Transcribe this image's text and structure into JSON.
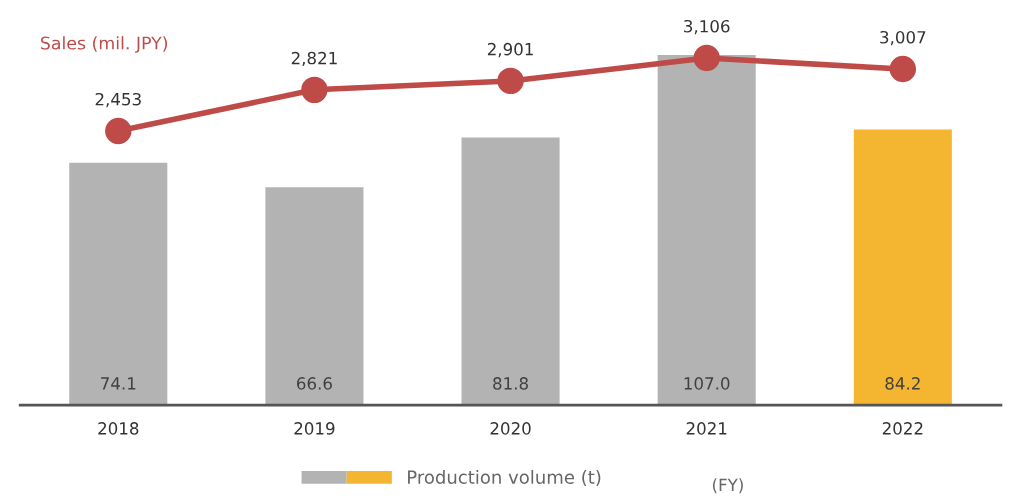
{
  "chart_data": {
    "type": "bar",
    "categories": [
      "2018",
      "2019",
      "2020",
      "2021",
      "2022"
    ],
    "series": [
      {
        "name": "Production volume (t)",
        "colors": [
          "#b3b3b3",
          "#b3b3b3",
          "#b3b3b3",
          "#b3b3b3",
          "#f4b630"
        ],
        "values": [
          74.1,
          66.6,
          81.8,
          107.0,
          84.2
        ],
        "value_labels": [
          "74.1",
          "66.6",
          "81.8",
          "107.0",
          "84.2"
        ]
      },
      {
        "name": "Sales (mil. JPY)",
        "type": "line",
        "axis": "y2",
        "color": "#be4b48",
        "values": [
          2453,
          2821,
          2901,
          3106,
          3007
        ],
        "value_labels": [
          "2,453",
          "2,821",
          "2,901",
          "3,106",
          "3,007"
        ]
      }
    ],
    "marker": "circle",
    "legend": "bottom",
    "tick_labels": "x",
    "grid": false,
    "annotations": [
      "(FY)"
    ]
  }
}
